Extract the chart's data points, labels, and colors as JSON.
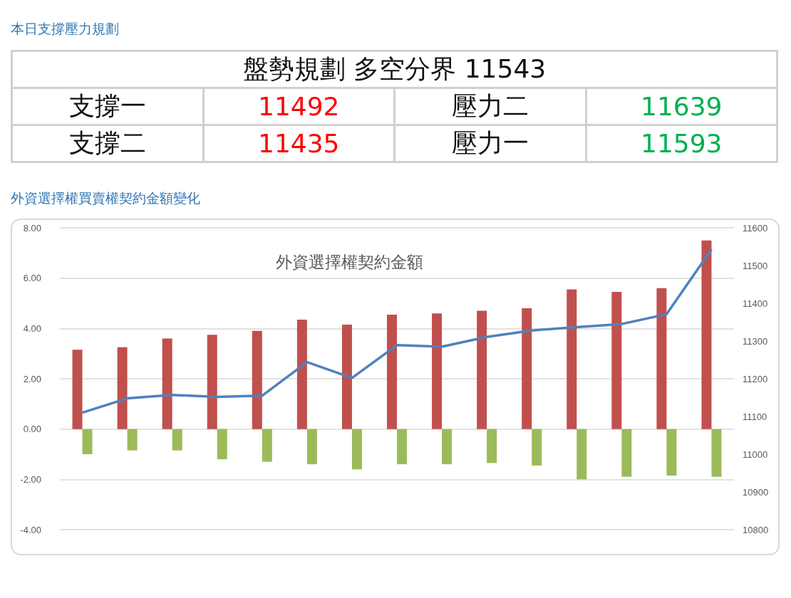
{
  "chart_data": [
    {
      "type": "other",
      "title": "本日支撐壓力規劃",
      "annotations": [
        "盤勢規劃 多空分界 11543",
        "支撐一",
        "11492",
        "壓力二",
        "11639",
        "支撐二",
        "11435",
        "壓力一",
        "11593"
      ]
    },
    {
      "type": "bar",
      "title": "外資選擇權買賣權契約金額變化",
      "subtitle": "外資選擇權契約金額",
      "categories": [
        null,
        null,
        null,
        null,
        null,
        null,
        null,
        null,
        null,
        null,
        null,
        null,
        null,
        null,
        null
      ],
      "series": [
        {
          "type": "bar",
          "color": "#c0504d",
          "values": [
            3.15,
            3.25,
            3.6,
            3.75,
            3.9,
            4.35,
            4.15,
            4.55,
            4.6,
            4.7,
            4.8,
            5.55,
            5.45,
            5.6,
            7.5
          ]
        },
        {
          "type": "bar",
          "color": "#9bbb59",
          "values": [
            -1.0,
            -0.85,
            -0.85,
            -1.2,
            -1.3,
            -1.4,
            -1.6,
            -1.4,
            -1.4,
            -1.35,
            -1.45,
            -2.0,
            -1.9,
            -1.85,
            -1.9
          ]
        },
        {
          "type": "line",
          "axis": "y2",
          "color": "#4f81bd",
          "values": [
            11110,
            11148,
            11157,
            11152,
            11155,
            11244,
            11202,
            11289,
            11285,
            11311,
            11328,
            11337,
            11345,
            11371,
            11543
          ]
        }
      ],
      "ylim": [
        -4,
        8
      ],
      "yticks": [
        {
          "value": -4,
          "label": "-4.00"
        },
        {
          "value": -2,
          "label": "-2.00"
        },
        {
          "value": 0,
          "label": "0.00"
        },
        {
          "value": 2,
          "label": "2.00"
        },
        {
          "value": 4,
          "label": "4.00"
        },
        {
          "value": 6,
          "label": "6.00"
        },
        {
          "value": 8,
          "label": "8.00"
        }
      ],
      "y2lim": [
        10800,
        11600
      ],
      "y2ticks": [
        10800,
        10900,
        11000,
        11100,
        11200,
        11300,
        11400,
        11500,
        11600
      ],
      "grid": "y",
      "marker": "none",
      "line_style": "solid"
    }
  ]
}
